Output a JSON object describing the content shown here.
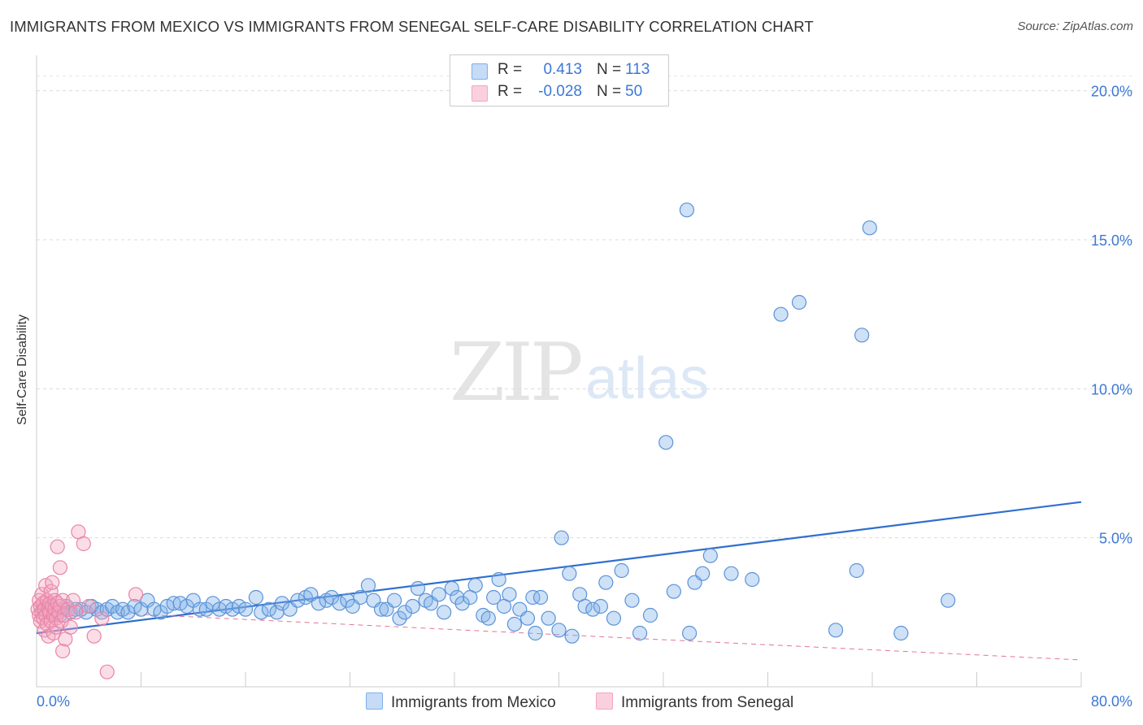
{
  "title": "IMMIGRANTS FROM MEXICO VS IMMIGRANTS FROM SENEGAL SELF-CARE DISABILITY CORRELATION CHART",
  "source": "Source: ZipAtlas.com",
  "watermark": {
    "zip": "ZIP",
    "atlas": "atlas"
  },
  "legend": {
    "r_label": "R =",
    "n_label": "N =",
    "rows": [
      {
        "name": "Immigrants from Mexico",
        "r": "0.413",
        "n": "113",
        "color": "#7fb0e8"
      },
      {
        "name": "Immigrants from Senegal",
        "r": "-0.028",
        "n": "50",
        "color": "#f4a6bf"
      }
    ]
  },
  "chart_data": {
    "type": "scatter",
    "title": "IMMIGRANTS FROM MEXICO VS IMMIGRANTS FROM SENEGAL SELF-CARE DISABILITY CORRELATION CHART",
    "xlabel": "",
    "ylabel": "Self-Care Disability",
    "xlim": [
      0,
      80
    ],
    "ylim": [
      0,
      21
    ],
    "x_tick_labels": [
      "0.0%",
      "80.0%"
    ],
    "y_ticks": [
      5,
      10,
      15,
      20
    ],
    "y_tick_labels": [
      "5.0%",
      "10.0%",
      "15.0%",
      "20.0%"
    ],
    "grid": true,
    "legend_position": "top-center",
    "series": [
      {
        "name": "Immigrants from Mexico",
        "color": "#7fb0e8",
        "stroke": "#5b93d9",
        "trend": {
          "x": [
            0,
            80
          ],
          "y": [
            1.8,
            6.2
          ],
          "color": "#2f6fd0",
          "style": "solid"
        },
        "points": [
          [
            0.5,
            2.6
          ],
          [
            0.8,
            2.5
          ],
          [
            1.0,
            2.7
          ],
          [
            1.2,
            2.5
          ],
          [
            1.5,
            2.6
          ],
          [
            1.8,
            2.4
          ],
          [
            2.0,
            2.6
          ],
          [
            2.3,
            2.7
          ],
          [
            2.6,
            2.5
          ],
          [
            3.0,
            2.6
          ],
          [
            3.4,
            2.6
          ],
          [
            3.8,
            2.5
          ],
          [
            4.2,
            2.7
          ],
          [
            4.6,
            2.6
          ],
          [
            5.0,
            2.5
          ],
          [
            5.4,
            2.6
          ],
          [
            5.8,
            2.7
          ],
          [
            6.2,
            2.5
          ],
          [
            6.6,
            2.6
          ],
          [
            7.0,
            2.5
          ],
          [
            7.5,
            2.7
          ],
          [
            8.0,
            2.6
          ],
          [
            8.5,
            2.9
          ],
          [
            9.0,
            2.6
          ],
          [
            9.5,
            2.5
          ],
          [
            10.0,
            2.7
          ],
          [
            10.5,
            2.8
          ],
          [
            11.0,
            2.8
          ],
          [
            11.5,
            2.7
          ],
          [
            12.0,
            2.9
          ],
          [
            12.5,
            2.6
          ],
          [
            13.0,
            2.6
          ],
          [
            13.5,
            2.8
          ],
          [
            14.0,
            2.6
          ],
          [
            14.5,
            2.7
          ],
          [
            15.0,
            2.6
          ],
          [
            15.5,
            2.7
          ],
          [
            16.0,
            2.6
          ],
          [
            16.8,
            3.0
          ],
          [
            17.2,
            2.5
          ],
          [
            17.8,
            2.6
          ],
          [
            18.4,
            2.5
          ],
          [
            18.8,
            2.8
          ],
          [
            19.4,
            2.6
          ],
          [
            20.0,
            2.9
          ],
          [
            20.6,
            3.0
          ],
          [
            21.0,
            3.1
          ],
          [
            21.6,
            2.8
          ],
          [
            22.2,
            2.9
          ],
          [
            22.6,
            3.0
          ],
          [
            23.2,
            2.8
          ],
          [
            23.8,
            2.9
          ],
          [
            24.2,
            2.7
          ],
          [
            24.8,
            3.0
          ],
          [
            25.4,
            3.4
          ],
          [
            25.8,
            2.9
          ],
          [
            26.4,
            2.6
          ],
          [
            26.8,
            2.6
          ],
          [
            27.4,
            2.9
          ],
          [
            27.8,
            2.3
          ],
          [
            28.2,
            2.5
          ],
          [
            28.8,
            2.7
          ],
          [
            29.2,
            3.3
          ],
          [
            29.8,
            2.9
          ],
          [
            30.2,
            2.8
          ],
          [
            30.8,
            3.1
          ],
          [
            31.2,
            2.5
          ],
          [
            31.8,
            3.3
          ],
          [
            32.2,
            3.0
          ],
          [
            32.6,
            2.8
          ],
          [
            33.2,
            3.0
          ],
          [
            33.6,
            3.4
          ],
          [
            34.2,
            2.4
          ],
          [
            34.6,
            2.3
          ],
          [
            35.0,
            3.0
          ],
          [
            35.4,
            3.6
          ],
          [
            35.8,
            2.7
          ],
          [
            36.2,
            3.1
          ],
          [
            36.6,
            2.1
          ],
          [
            37.0,
            2.6
          ],
          [
            37.6,
            2.3
          ],
          [
            38.0,
            3.0
          ],
          [
            38.2,
            1.8
          ],
          [
            38.6,
            3.0
          ],
          [
            39.2,
            2.3
          ],
          [
            40.2,
            5.0
          ],
          [
            40.0,
            1.9
          ],
          [
            41.0,
            1.7
          ],
          [
            40.8,
            3.8
          ],
          [
            41.6,
            3.1
          ],
          [
            42.0,
            2.7
          ],
          [
            42.6,
            2.6
          ],
          [
            43.2,
            2.7
          ],
          [
            43.6,
            3.5
          ],
          [
            44.2,
            2.3
          ],
          [
            44.8,
            3.9
          ],
          [
            45.6,
            2.9
          ],
          [
            46.2,
            1.8
          ],
          [
            47.0,
            2.4
          ],
          [
            48.2,
            8.2
          ],
          [
            48.8,
            3.2
          ],
          [
            49.8,
            16.0
          ],
          [
            50.4,
            3.5
          ],
          [
            50.0,
            1.8
          ],
          [
            51.0,
            3.8
          ],
          [
            51.6,
            4.4
          ],
          [
            53.2,
            3.8
          ],
          [
            54.8,
            3.6
          ],
          [
            57.0,
            12.5
          ],
          [
            58.4,
            12.9
          ],
          [
            61.2,
            1.9
          ],
          [
            62.8,
            3.9
          ],
          [
            63.2,
            11.8
          ],
          [
            63.8,
            15.4
          ],
          [
            66.2,
            1.8
          ],
          [
            69.8,
            2.9
          ]
        ]
      },
      {
        "name": "Immigrants from Senegal",
        "color": "#f4a6bf",
        "stroke": "#e785a6",
        "trend": {
          "x": [
            0,
            80
          ],
          "y": [
            2.6,
            0.9
          ],
          "color": "#e57399",
          "style": "dashed"
        },
        "points": [
          [
            0.1,
            2.6
          ],
          [
            0.2,
            2.4
          ],
          [
            0.2,
            2.9
          ],
          [
            0.3,
            2.2
          ],
          [
            0.3,
            2.7
          ],
          [
            0.4,
            2.5
          ],
          [
            0.4,
            3.1
          ],
          [
            0.5,
            2.3
          ],
          [
            0.5,
            2.8
          ],
          [
            0.6,
            2.6
          ],
          [
            0.6,
            1.9
          ],
          [
            0.7,
            2.4
          ],
          [
            0.7,
            3.4
          ],
          [
            0.8,
            2.9
          ],
          [
            0.8,
            2.1
          ],
          [
            0.9,
            2.6
          ],
          [
            0.9,
            1.7
          ],
          [
            1.0,
            2.5
          ],
          [
            1.0,
            2.8
          ],
          [
            1.1,
            3.2
          ],
          [
            1.1,
            2.2
          ],
          [
            1.2,
            2.7
          ],
          [
            1.2,
            3.5
          ],
          [
            1.3,
            2.4
          ],
          [
            1.3,
            1.8
          ],
          [
            1.4,
            2.9
          ],
          [
            1.4,
            2.6
          ],
          [
            1.5,
            2.3
          ],
          [
            1.5,
            2.0
          ],
          [
            1.6,
            4.7
          ],
          [
            1.6,
            2.8
          ],
          [
            1.7,
            2.5
          ],
          [
            1.8,
            2.7
          ],
          [
            1.8,
            4.0
          ],
          [
            1.9,
            2.2
          ],
          [
            2.0,
            1.2
          ],
          [
            2.0,
            2.9
          ],
          [
            2.1,
            2.4
          ],
          [
            2.2,
            1.6
          ],
          [
            2.4,
            2.6
          ],
          [
            2.6,
            2.0
          ],
          [
            2.8,
            2.9
          ],
          [
            3.0,
            2.5
          ],
          [
            3.2,
            5.2
          ],
          [
            3.6,
            4.8
          ],
          [
            4.0,
            2.7
          ],
          [
            4.4,
            1.7
          ],
          [
            5.0,
            2.3
          ],
          [
            5.4,
            0.5
          ],
          [
            7.6,
            3.1
          ]
        ]
      }
    ]
  }
}
